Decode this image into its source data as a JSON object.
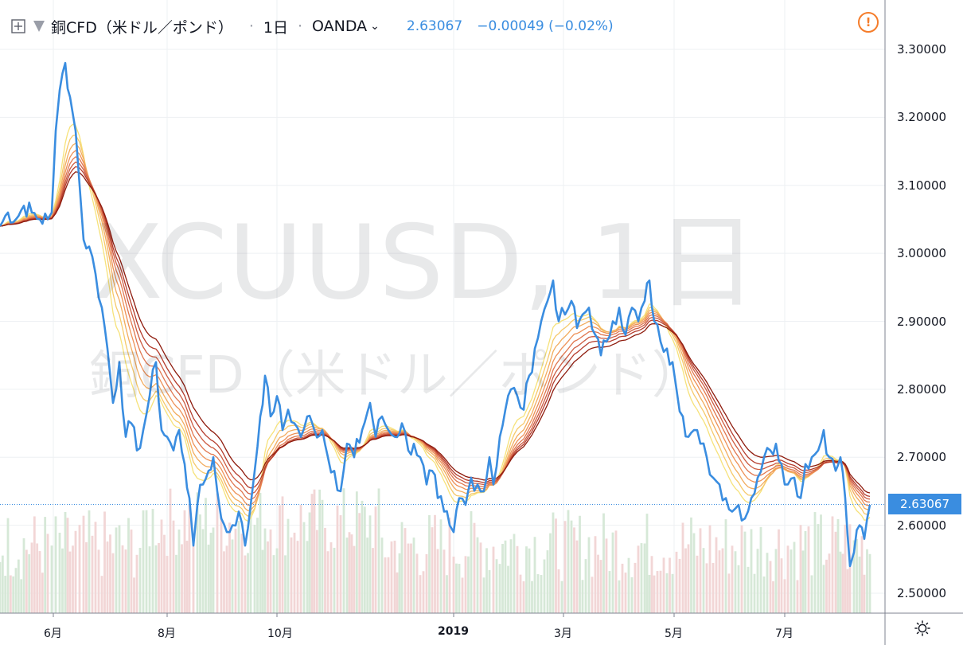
{
  "header": {
    "symbol_name": "銅CFD（米ドル／ポンド）",
    "separator": "·",
    "timeframe": "1日",
    "exchange": "OANDA",
    "last_price": "2.63067",
    "change": "−0.00049 (−0.02%)",
    "alert_icon": "!"
  },
  "watermark": {
    "line1": "XCUUSD, 1日",
    "line2": "銅CFD（米ドル／ポンド）"
  },
  "colors": {
    "price_line": "#3a8de0",
    "volume_up": "#d6e8d7",
    "volume_down": "#f2d6d6",
    "ma_fast": "#f6e27a",
    "ma_slow": "#8e1b0d",
    "grid": "#eef0f3"
  },
  "chart_data": {
    "type": "line",
    "y_ticks": [
      "3.30000",
      "3.20000",
      "3.10000",
      "3.00000",
      "2.90000",
      "2.80000",
      "2.70000",
      "2.60000",
      "2.50000"
    ],
    "ylim": [
      2.465,
      3.33
    ],
    "current_price_label": "2.63067",
    "x_labels": [
      {
        "text": "6月",
        "bold": false
      },
      {
        "text": "8月",
        "bold": false
      },
      {
        "text": "10月",
        "bold": false
      },
      {
        "text": "2019",
        "bold": true
      },
      {
        "text": "3月",
        "bold": false
      },
      {
        "text": "5月",
        "bold": false
      },
      {
        "text": "7月",
        "bold": false
      }
    ],
    "price_series_keypoints": [
      [
        0,
        3.04
      ],
      [
        10,
        3.06
      ],
      [
        20,
        3.05
      ],
      [
        30,
        3.07
      ],
      [
        40,
        3.06
      ],
      [
        50,
        3.05
      ],
      [
        60,
        3.05
      ],
      [
        65,
        3.06
      ],
      [
        70,
        3.18
      ],
      [
        75,
        3.24
      ],
      [
        82,
        3.28
      ],
      [
        88,
        3.23
      ],
      [
        95,
        3.18
      ],
      [
        100,
        3.1
      ],
      [
        105,
        3.02
      ],
      [
        112,
        3.01
      ],
      [
        120,
        2.97
      ],
      [
        128,
        2.92
      ],
      [
        135,
        2.86
      ],
      [
        142,
        2.78
      ],
      [
        150,
        2.84
      ],
      [
        158,
        2.73
      ],
      [
        165,
        2.75
      ],
      [
        172,
        2.71
      ],
      [
        180,
        2.74
      ],
      [
        188,
        2.79
      ],
      [
        196,
        2.84
      ],
      [
        203,
        2.74
      ],
      [
        210,
        2.73
      ],
      [
        218,
        2.71
      ],
      [
        225,
        2.74
      ],
      [
        232,
        2.69
      ],
      [
        238,
        2.64
      ],
      [
        243,
        2.57
      ],
      [
        248,
        2.63
      ],
      [
        255,
        2.66
      ],
      [
        262,
        2.68
      ],
      [
        268,
        2.7
      ],
      [
        273,
        2.65
      ],
      [
        278,
        2.61
      ],
      [
        285,
        2.59
      ],
      [
        292,
        2.6
      ],
      [
        300,
        2.62
      ],
      [
        308,
        2.57
      ],
      [
        315,
        2.63
      ],
      [
        320,
        2.68
      ],
      [
        327,
        2.76
      ],
      [
        333,
        2.82
      ],
      [
        340,
        2.76
      ],
      [
        348,
        2.79
      ],
      [
        355,
        2.74
      ],
      [
        362,
        2.77
      ],
      [
        370,
        2.75
      ],
      [
        378,
        2.73
      ],
      [
        386,
        2.76
      ],
      [
        395,
        2.74
      ],
      [
        405,
        2.74
      ],
      [
        412,
        2.7
      ],
      [
        420,
        2.68
      ],
      [
        428,
        2.65
      ],
      [
        436,
        2.72
      ],
      [
        445,
        2.7
      ],
      [
        455,
        2.74
      ],
      [
        465,
        2.78
      ],
      [
        472,
        2.73
      ],
      [
        480,
        2.76
      ],
      [
        488,
        2.74
      ],
      [
        496,
        2.73
      ],
      [
        505,
        2.75
      ],
      [
        513,
        2.71
      ],
      [
        520,
        2.72
      ],
      [
        528,
        2.7
      ],
      [
        536,
        2.66
      ],
      [
        543,
        2.68
      ],
      [
        550,
        2.64
      ],
      [
        558,
        2.62
      ],
      [
        565,
        2.6
      ],
      [
        570,
        2.59
      ],
      [
        577,
        2.64
      ],
      [
        585,
        2.63
      ],
      [
        592,
        2.67
      ],
      [
        600,
        2.66
      ],
      [
        608,
        2.65
      ],
      [
        615,
        2.7
      ],
      [
        620,
        2.66
      ],
      [
        628,
        2.73
      ],
      [
        635,
        2.77
      ],
      [
        642,
        2.8
      ],
      [
        650,
        2.79
      ],
      [
        658,
        2.77
      ],
      [
        665,
        2.82
      ],
      [
        672,
        2.86
      ],
      [
        680,
        2.9
      ],
      [
        688,
        2.93
      ],
      [
        695,
        2.96
      ],
      [
        702,
        2.9
      ],
      [
        710,
        2.91
      ],
      [
        718,
        2.93
      ],
      [
        725,
        2.89
      ],
      [
        732,
        2.91
      ],
      [
        740,
        2.92
      ],
      [
        748,
        2.88
      ],
      [
        755,
        2.85
      ],
      [
        762,
        2.87
      ],
      [
        770,
        2.9
      ],
      [
        778,
        2.92
      ],
      [
        786,
        2.88
      ],
      [
        794,
        2.92
      ],
      [
        802,
        2.9
      ],
      [
        810,
        2.93
      ],
      [
        816,
        2.96
      ],
      [
        822,
        2.9
      ],
      [
        830,
        2.87
      ],
      [
        838,
        2.86
      ],
      [
        845,
        2.84
      ],
      [
        850,
        2.8
      ],
      [
        858,
        2.76
      ],
      [
        865,
        2.73
      ],
      [
        872,
        2.74
      ],
      [
        880,
        2.72
      ],
      [
        888,
        2.7
      ],
      [
        896,
        2.67
      ],
      [
        904,
        2.66
      ],
      [
        912,
        2.64
      ],
      [
        920,
        2.62
      ],
      [
        928,
        2.63
      ],
      [
        936,
        2.61
      ],
      [
        944,
        2.64
      ],
      [
        952,
        2.67
      ],
      [
        960,
        2.7
      ],
      [
        968,
        2.71
      ],
      [
        975,
        2.72
      ],
      [
        982,
        2.69
      ],
      [
        990,
        2.66
      ],
      [
        998,
        2.67
      ],
      [
        1006,
        2.64
      ],
      [
        1012,
        2.69
      ],
      [
        1020,
        2.7
      ],
      [
        1028,
        2.71
      ],
      [
        1035,
        2.74
      ],
      [
        1042,
        2.7
      ],
      [
        1050,
        2.68
      ],
      [
        1056,
        2.7
      ],
      [
        1062,
        2.64
      ],
      [
        1068,
        2.54
      ],
      [
        1073,
        2.56
      ],
      [
        1080,
        2.6
      ],
      [
        1086,
        2.58
      ],
      [
        1093,
        2.63
      ]
    ]
  }
}
